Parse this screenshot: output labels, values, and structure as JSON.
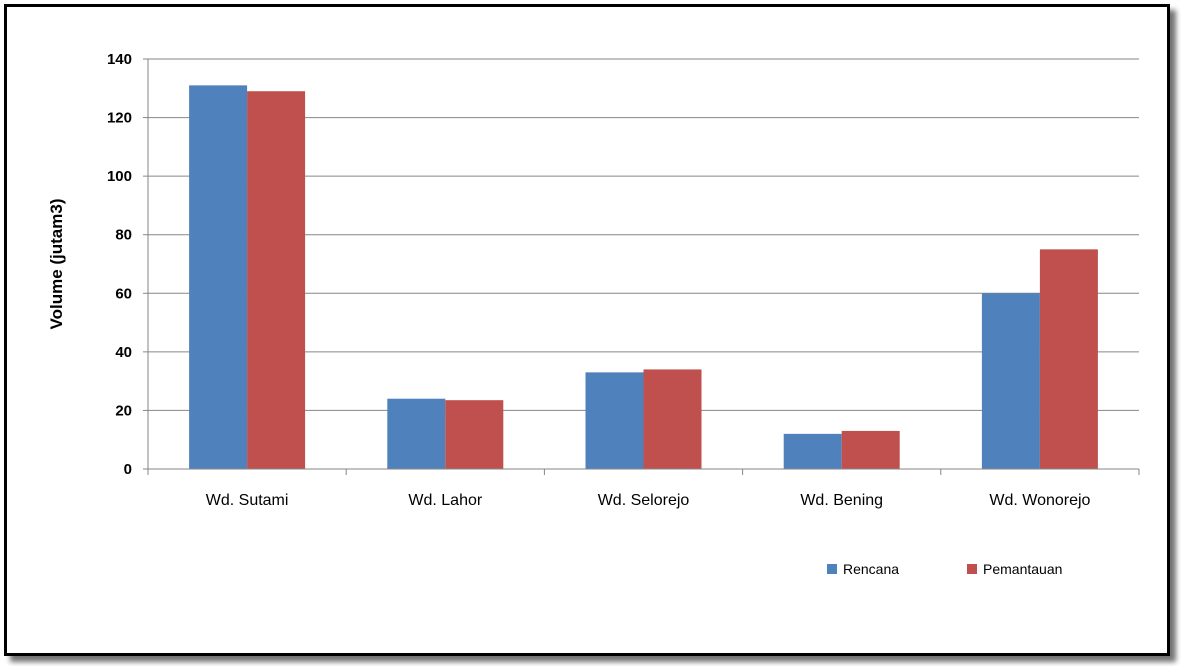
{
  "chart_data": {
    "type": "bar",
    "title": "",
    "xlabel": "",
    "ylabel": "Volume (jutam3)",
    "categories": [
      "Wd. Sutami",
      "Wd. Lahor",
      "Wd. Selorejo",
      "Wd. Bening",
      "Wd. Wonorejo"
    ],
    "series": [
      {
        "name": "Rencana",
        "values": [
          131,
          24,
          33,
          12,
          60
        ]
      },
      {
        "name": "Pemantauan",
        "values": [
          129,
          23.5,
          34,
          13,
          75
        ]
      }
    ],
    "ylim": [
      0,
      140
    ],
    "yticks": [
      0,
      20,
      40,
      60,
      80,
      100,
      120,
      140
    ],
    "grid": true,
    "legend_position": "bottom-right",
    "colors": {
      "Rencana": "#4f81bd",
      "Pemantauan": "#c0504d",
      "gridline": "#868686",
      "axis": "#868686"
    }
  }
}
